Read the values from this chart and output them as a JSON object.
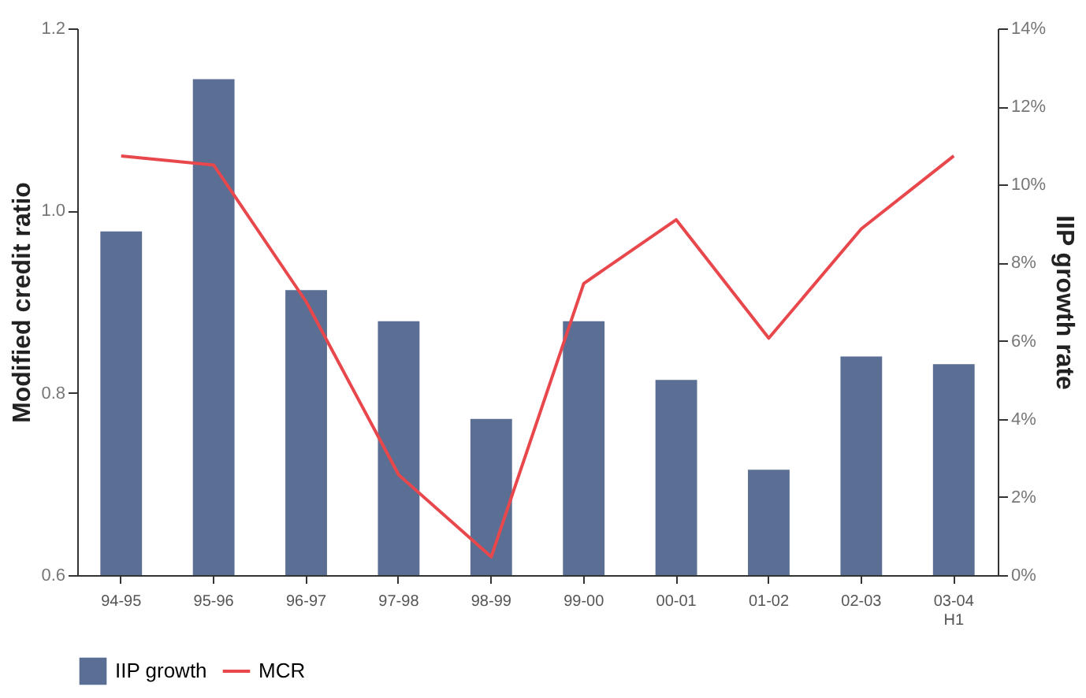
{
  "chart_data": {
    "type": "bar",
    "categories": [
      "94-95",
      "95-96",
      "96-97",
      "97-98",
      "98-99",
      "99-00",
      "00-01",
      "01-02",
      "02-03",
      "03-04 H1"
    ],
    "series": [
      {
        "name": "IIP growth",
        "axis": "y2",
        "color": "#5a6f93",
        "values": [
          8.8,
          12.7,
          7.3,
          6.5,
          4.0,
          6.5,
          5.0,
          2.7,
          5.6,
          5.4
        ]
      },
      {
        "name": "MCR",
        "type": "line",
        "axis": "y",
        "color": "#e8474c",
        "values": [
          1.06,
          1.05,
          0.9,
          0.71,
          0.62,
          0.92,
          0.99,
          0.86,
          0.98,
          1.06
        ]
      }
    ],
    "ylabel": "Modified credit ratio",
    "y2label": "IIP growth rate",
    "ylim": [
      0.6,
      1.2
    ],
    "yticks": [
      {
        "value": 0.6,
        "label": "0.6"
      },
      {
        "value": 0.8,
        "label": "0.8"
      },
      {
        "value": 1.0,
        "label": "1.0"
      },
      {
        "value": 1.2,
        "label": "1.2"
      }
    ],
    "y2lim": [
      0,
      14
    ],
    "y2ticks": [
      {
        "value": 0,
        "label": "0%"
      },
      {
        "value": 2,
        "label": "2%"
      },
      {
        "value": 4,
        "label": "4%"
      },
      {
        "value": 6,
        "label": "6%"
      },
      {
        "value": 8,
        "label": "8%"
      },
      {
        "value": 10,
        "label": "10%"
      },
      {
        "value": 12,
        "label": "12%"
      },
      {
        "value": 14,
        "label": "14%"
      }
    ],
    "grid": false,
    "legend": "bottom",
    "line_style": "solid",
    "marker": "none"
  }
}
